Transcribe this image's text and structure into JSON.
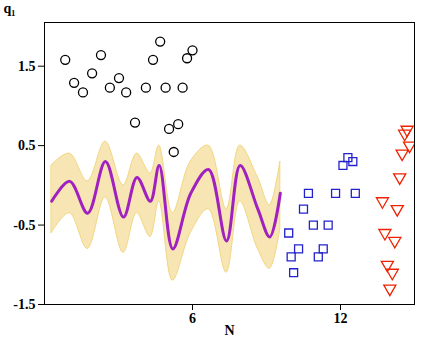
{
  "chart_data": {
    "type": "scatter",
    "x_label": "N",
    "y_label": "q₁",
    "xlim": [
      0,
      15
    ],
    "ylim": [
      -1.5,
      2.05
    ],
    "xticks": [
      6,
      12
    ],
    "yticks": [
      -1.5,
      -0.5,
      0.5,
      1.5
    ],
    "grid": false,
    "series": [
      {
        "type": "area",
        "color": "#f2d680",
        "x": [
          0.29,
          1.02,
          1.75,
          2.47,
          3.2,
          3.75,
          4.29,
          4.65,
          5.2,
          5.93,
          6.65,
          7.38,
          7.93,
          8.65,
          9.13,
          9.56
        ],
        "upper": [
          0.25,
          0.4,
          0.05,
          0.55,
          0.0,
          0.4,
          0.15,
          0.5,
          -0.35,
          0.3,
          0.5,
          -0.3,
          0.5,
          0.1,
          -0.25,
          0.3
        ],
        "lower": [
          -0.6,
          -0.35,
          -0.8,
          -0.15,
          -0.85,
          -0.35,
          -0.65,
          -0.2,
          -1.2,
          -0.6,
          -0.3,
          -1.1,
          -0.2,
          -0.8,
          -1.05,
          -0.55
        ]
      },
      {
        "type": "line",
        "color": "#a020c0",
        "x": [
          0.29,
          1.02,
          1.75,
          2.47,
          3.2,
          3.75,
          4.29,
          4.65,
          5.2,
          5.93,
          6.65,
          7.38,
          7.93,
          8.65,
          9.13,
          9.56
        ],
        "values": [
          -0.2,
          0.05,
          -0.35,
          0.3,
          -0.4,
          0.1,
          -0.2,
          0.25,
          -0.8,
          -0.1,
          0.2,
          -0.7,
          0.25,
          -0.3,
          -0.65,
          -0.1
        ]
      },
      {
        "type": "scatter",
        "marker": "circle",
        "color": "#000000",
        "x": [
          0.84,
          1.2,
          1.56,
          1.93,
          2.29,
          2.65,
          3.02,
          3.31,
          3.67,
          4.11,
          4.4,
          4.69,
          4.91,
          5.05,
          5.24,
          5.42,
          5.6,
          5.78,
          6.0
        ],
        "values": [
          1.58,
          1.29,
          1.17,
          1.41,
          1.64,
          1.23,
          1.35,
          1.17,
          0.79,
          1.23,
          1.58,
          1.81,
          1.23,
          0.71,
          0.42,
          0.77,
          1.23,
          1.6,
          1.7
        ]
      },
      {
        "type": "scatter",
        "marker": "square",
        "color": "#2222cc",
        "x": [
          9.9,
          10.0,
          10.1,
          10.3,
          10.5,
          10.7,
          10.9,
          11.1,
          11.3,
          11.5,
          11.8,
          12.1,
          12.3,
          12.5,
          12.6
        ],
        "values": [
          -0.6,
          -0.9,
          -1.1,
          -0.8,
          -0.3,
          -0.1,
          -0.5,
          -0.9,
          -0.8,
          -0.5,
          -0.1,
          0.25,
          0.35,
          0.3,
          -0.1
        ]
      },
      {
        "type": "scatter",
        "marker": "triangle-down",
        "color": "#ee2200",
        "x": [
          13.7,
          13.8,
          13.9,
          14.0,
          14.1,
          14.2,
          14.3,
          14.4,
          14.5,
          14.6,
          14.7,
          14.8
        ],
        "values": [
          -0.2,
          -0.6,
          -1.0,
          -1.3,
          -1.1,
          -0.7,
          -0.3,
          0.1,
          0.4,
          0.65,
          0.7,
          0.5
        ]
      }
    ]
  }
}
